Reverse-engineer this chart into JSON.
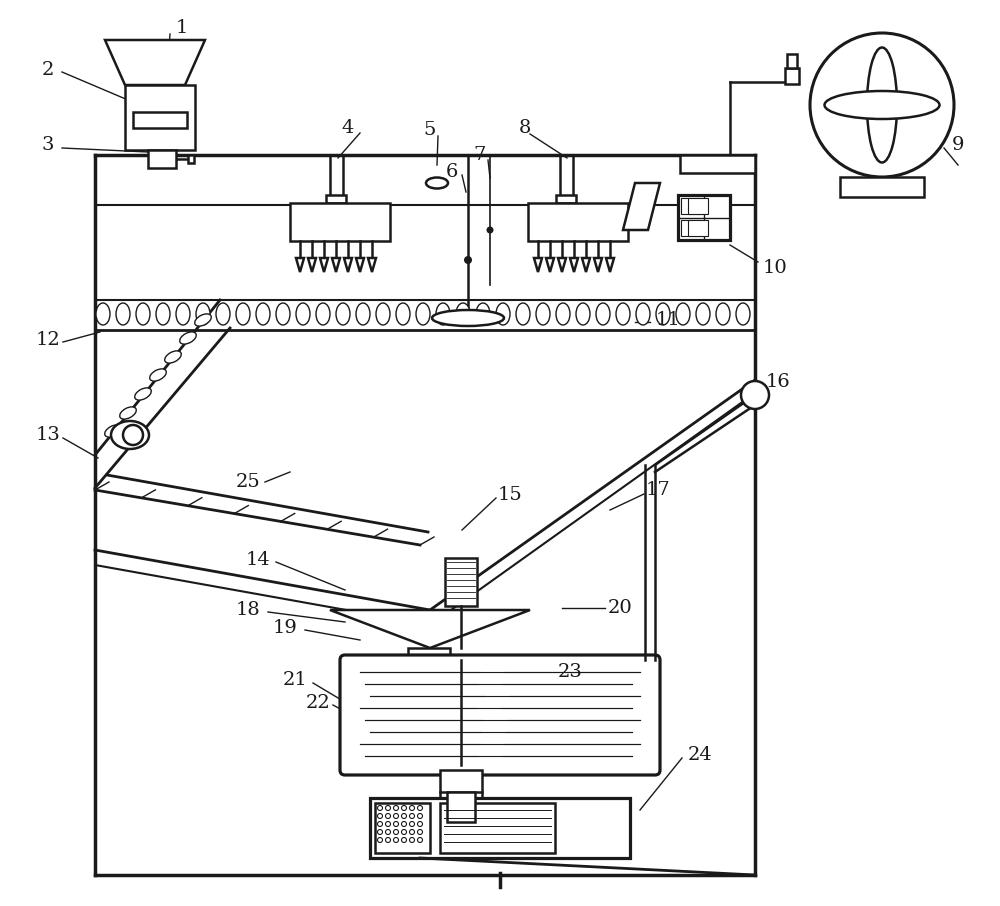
{
  "bg_color": "#ffffff",
  "line_color": "#1a1a1a",
  "line_width": 1.8,
  "label_fontsize": 14
}
